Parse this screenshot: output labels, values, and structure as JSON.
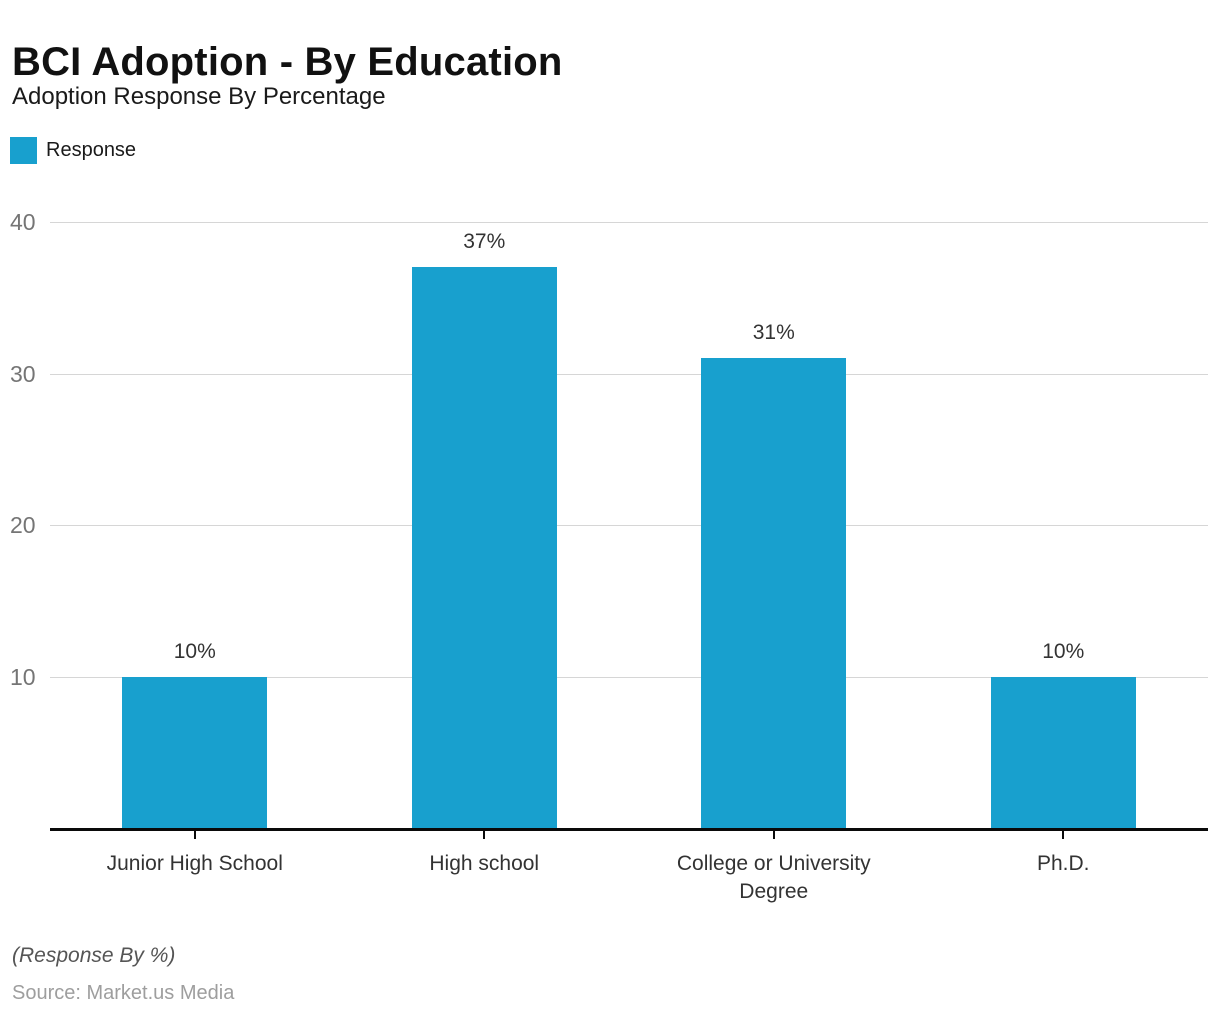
{
  "header": {
    "title": "BCI Adoption - By Education",
    "subtitle": "Adoption Response By Percentage"
  },
  "legend": {
    "items": [
      {
        "label": "Response",
        "color": "#18a0ce"
      }
    ]
  },
  "chart_data": {
    "type": "bar",
    "title": "BCI Adoption - By Education",
    "subtitle": "Adoption Response By Percentage",
    "categories": [
      "Junior High School",
      "High school",
      "College or University Degree",
      "Ph.D."
    ],
    "series": [
      {
        "name": "Response",
        "color": "#18a0ce",
        "values": [
          10,
          37,
          31,
          10
        ],
        "value_labels": [
          "10%",
          "37%",
          "31%",
          "10%"
        ]
      }
    ],
    "xlabel": "",
    "ylabel": "",
    "ylim": [
      0,
      40
    ],
    "yticks": [
      10,
      20,
      30,
      40
    ],
    "grid": true,
    "legend_position": "top-left",
    "bar_relative_width": 0.5
  },
  "footer": {
    "note": "(Response By %)",
    "source": "Source: Market.us Media"
  }
}
